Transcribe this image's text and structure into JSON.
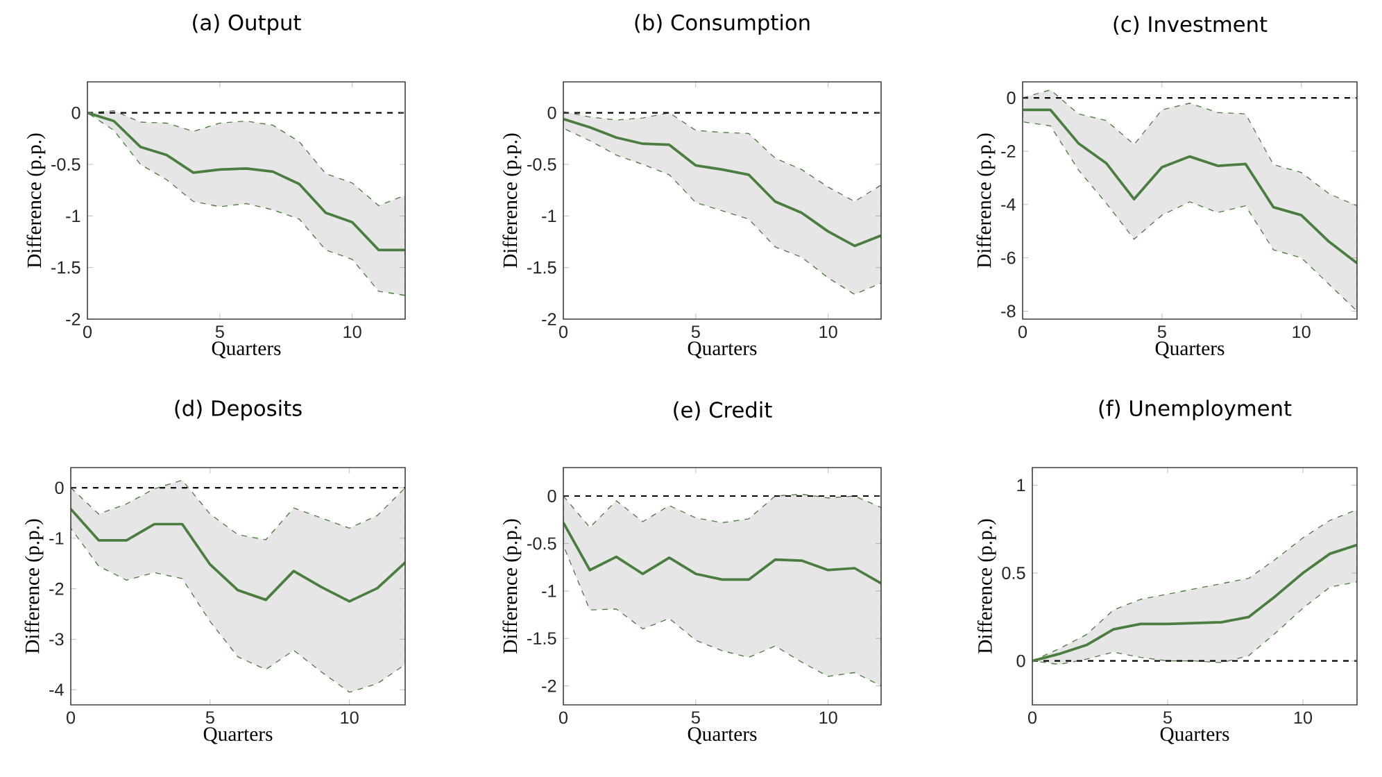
{
  "chart_data": [
    {
      "type": "line",
      "title": "(a) Output",
      "xlabel": "Quarters",
      "ylabel": "Difference (p.p.)",
      "x": [
        0,
        1,
        2,
        3,
        4,
        5,
        6,
        7,
        8,
        9,
        10,
        11,
        12
      ],
      "xlim": [
        0,
        12
      ],
      "xticks": [
        0,
        5,
        10
      ],
      "ylim": [
        -2,
        0.3
      ],
      "yticks": [
        -2,
        -1.5,
        -1,
        -0.5,
        0
      ],
      "series": [
        {
          "color": "#4a7d3f",
          "line_style": "solid",
          "values": [
            0,
            -0.08,
            -0.33,
            -0.41,
            -0.58,
            -0.55,
            -0.54,
            -0.57,
            -0.69,
            -0.97,
            -1.06,
            -1.33,
            -1.33
          ],
          "lower": [
            0,
            -0.17,
            -0.5,
            -0.65,
            -0.86,
            -0.91,
            -0.88,
            -0.94,
            -1.03,
            -1.33,
            -1.42,
            -1.73,
            -1.77
          ],
          "upper": [
            0,
            0.02,
            -0.09,
            -0.1,
            -0.18,
            -0.1,
            -0.08,
            -0.12,
            -0.28,
            -0.59,
            -0.68,
            -0.9,
            -0.8
          ]
        }
      ],
      "ref_lines": [
        {
          "axis": "y",
          "value": 0,
          "color": "#000000",
          "line_style": "dashed"
        }
      ]
    },
    {
      "type": "line",
      "title": "(b) Consumption",
      "xlabel": "Quarters",
      "ylabel": "Difference (p.p.)",
      "x": [
        0,
        1,
        2,
        3,
        4,
        5,
        6,
        7,
        8,
        9,
        10,
        11,
        12
      ],
      "xlim": [
        0,
        12
      ],
      "xticks": [
        0,
        5,
        10
      ],
      "ylim": [
        -2,
        0.3
      ],
      "yticks": [
        -2,
        -1.5,
        -1,
        -0.5,
        0
      ],
      "series": [
        {
          "color": "#4a7d3f",
          "line_style": "solid",
          "values": [
            -0.06,
            -0.14,
            -0.24,
            -0.3,
            -0.31,
            -0.51,
            -0.55,
            -0.6,
            -0.86,
            -0.97,
            -1.15,
            -1.29,
            -1.19
          ],
          "lower": [
            -0.15,
            -0.27,
            -0.41,
            -0.5,
            -0.6,
            -0.87,
            -0.95,
            -1.03,
            -1.3,
            -1.4,
            -1.6,
            -1.76,
            -1.65
          ],
          "upper": [
            0.01,
            -0.04,
            -0.07,
            -0.05,
            0,
            -0.17,
            -0.19,
            -0.2,
            -0.44,
            -0.55,
            -0.72,
            -0.86,
            -0.7
          ]
        }
      ],
      "ref_lines": [
        {
          "axis": "y",
          "value": 0,
          "color": "#000000",
          "line_style": "dashed"
        }
      ]
    },
    {
      "type": "line",
      "title": "(c) Investment",
      "xlabel": "Quarters",
      "ylabel": "Difference (p.p.)",
      "x": [
        0,
        1,
        2,
        3,
        4,
        5,
        6,
        7,
        8,
        9,
        10,
        11,
        12
      ],
      "xlim": [
        0,
        12
      ],
      "xticks": [
        0,
        5,
        10
      ],
      "ylim": [
        -8.3,
        0.6
      ],
      "yticks": [
        -8,
        -6,
        -4,
        -2,
        0
      ],
      "series": [
        {
          "color": "#4a7d3f",
          "line_style": "solid",
          "values": [
            -0.45,
            -0.45,
            -1.7,
            -2.45,
            -3.8,
            -2.6,
            -2.2,
            -2.55,
            -2.48,
            -4.1,
            -4.4,
            -5.4,
            -6.2
          ],
          "lower": [
            -0.9,
            -1.05,
            -2.7,
            -3.95,
            -5.3,
            -4.4,
            -3.9,
            -4.3,
            -4.05,
            -5.7,
            -6.0,
            -7.0,
            -8.0
          ],
          "upper": [
            0,
            0.3,
            -0.6,
            -0.85,
            -1.75,
            -0.45,
            -0.2,
            -0.55,
            -0.6,
            -2.5,
            -2.8,
            -3.6,
            -4.05
          ]
        }
      ],
      "ref_lines": [
        {
          "axis": "y",
          "value": 0,
          "color": "#000000",
          "line_style": "dashed"
        }
      ]
    },
    {
      "type": "line",
      "title": "(d) Deposits",
      "xlabel": "Quarters",
      "ylabel": "Difference (p.p.)",
      "x": [
        0,
        1,
        2,
        3,
        4,
        5,
        6,
        7,
        8,
        9,
        10,
        11,
        12
      ],
      "xlim": [
        0,
        12
      ],
      "xticks": [
        0,
        5,
        10
      ],
      "ylim": [
        -4.3,
        0.4
      ],
      "yticks": [
        -4,
        -3,
        -2,
        -1,
        0
      ],
      "series": [
        {
          "color": "#4a7d3f",
          "line_style": "solid",
          "values": [
            -0.42,
            -1.04,
            -1.04,
            -0.72,
            -0.72,
            -1.52,
            -2.03,
            -2.22,
            -1.65,
            -1.97,
            -2.25,
            -1.99,
            -1.48
          ],
          "lower": [
            -0.8,
            -1.55,
            -1.83,
            -1.68,
            -1.8,
            -2.65,
            -3.35,
            -3.6,
            -3.22,
            -3.65,
            -4.05,
            -3.88,
            -3.5
          ],
          "upper": [
            0,
            -0.52,
            -0.32,
            -0.02,
            0.15,
            -0.52,
            -0.93,
            -1.03,
            -0.4,
            -0.6,
            -0.8,
            -0.55,
            0
          ]
        }
      ],
      "ref_lines": [
        {
          "axis": "y",
          "value": 0,
          "color": "#000000",
          "line_style": "dashed"
        }
      ]
    },
    {
      "type": "line",
      "title": "(e) Credit",
      "xlabel": "Quarters",
      "ylabel": "Difference (p.p.)",
      "x": [
        0,
        1,
        2,
        3,
        4,
        5,
        6,
        7,
        8,
        9,
        10,
        11,
        12
      ],
      "xlim": [
        0,
        12
      ],
      "xticks": [
        0,
        5,
        10
      ],
      "ylim": [
        -2.2,
        0.3
      ],
      "yticks": [
        -2,
        -1.5,
        -1,
        -0.5,
        0
      ],
      "series": [
        {
          "color": "#4a7d3f",
          "line_style": "solid",
          "values": [
            -0.28,
            -0.78,
            -0.64,
            -0.82,
            -0.65,
            -0.82,
            -0.88,
            -0.88,
            -0.67,
            -0.68,
            -0.78,
            -0.76,
            -0.92
          ],
          "lower": [
            -0.52,
            -1.2,
            -1.19,
            -1.4,
            -1.29,
            -1.52,
            -1.63,
            -1.7,
            -1.58,
            -1.75,
            -1.9,
            -1.86,
            -2.0
          ],
          "upper": [
            0,
            -0.33,
            -0.05,
            -0.27,
            -0.1,
            -0.23,
            -0.28,
            -0.24,
            0,
            0.02,
            -0.02,
            0,
            -0.12
          ]
        }
      ],
      "ref_lines": [
        {
          "axis": "y",
          "value": 0,
          "color": "#000000",
          "line_style": "dashed"
        }
      ]
    },
    {
      "type": "line",
      "title": "(f) Unemployment",
      "xlabel": "Quarters",
      "ylabel": "Difference (p.p.)",
      "x": [
        0,
        1,
        2,
        3,
        4,
        5,
        6,
        7,
        8,
        9,
        10,
        11,
        12
      ],
      "xlim": [
        0,
        12
      ],
      "xticks": [
        0,
        5,
        10
      ],
      "ylim": [
        -0.25,
        1.1
      ],
      "yticks": [
        0,
        0.5,
        1
      ],
      "series": [
        {
          "color": "#4a7d3f",
          "line_style": "solid",
          "values": [
            0,
            0.04,
            0.09,
            0.18,
            0.21,
            0.21,
            0.215,
            0.22,
            0.25,
            0.37,
            0.5,
            0.61,
            0.66
          ],
          "lower": [
            0,
            -0.02,
            0.01,
            0.05,
            0.02,
            0,
            0,
            -0.01,
            0.03,
            0.16,
            0.3,
            0.42,
            0.45
          ],
          "upper": [
            0,
            0.07,
            0.15,
            0.29,
            0.35,
            0.38,
            0.41,
            0.44,
            0.47,
            0.58,
            0.7,
            0.8,
            0.86
          ]
        }
      ],
      "ref_lines": [
        {
          "axis": "y",
          "value": 0,
          "color": "#000000",
          "line_style": "dashed"
        }
      ]
    }
  ]
}
